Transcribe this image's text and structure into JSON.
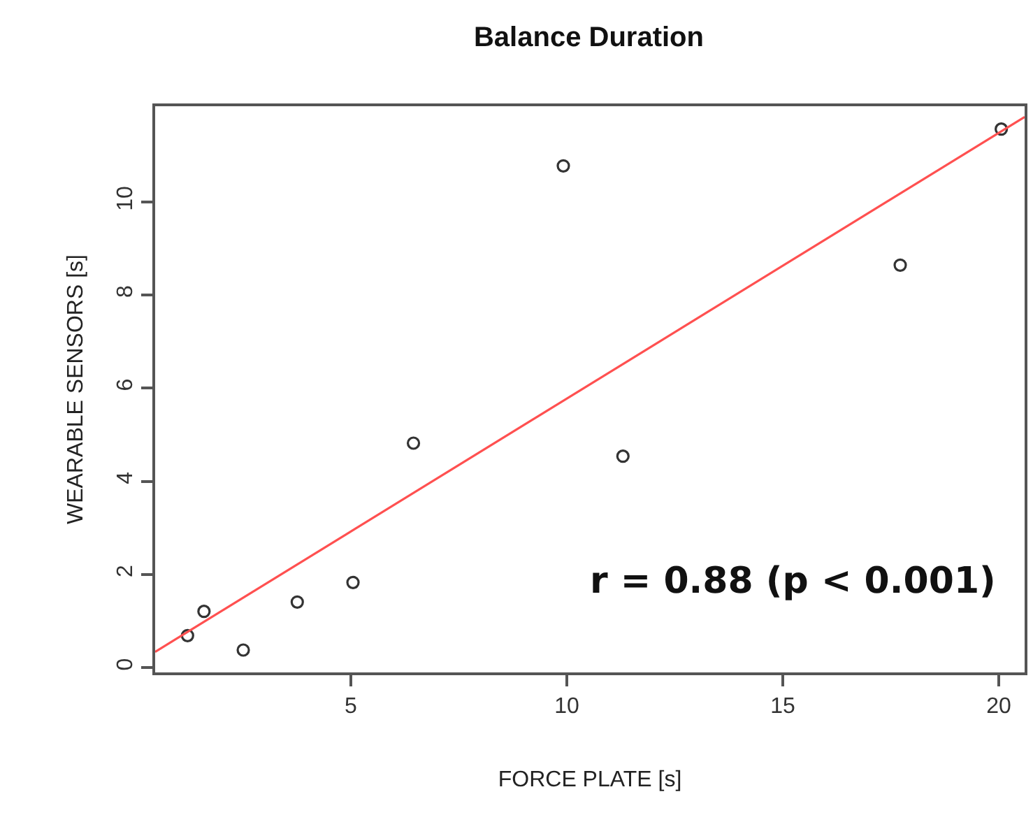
{
  "chart_data": {
    "type": "scatter",
    "title": "Balance Duration",
    "xlabel": "FORCE PLATE [s]",
    "ylabel": "WEARABLE SENSORS [s]",
    "x": [
      1.22,
      1.6,
      2.51,
      3.76,
      5.05,
      6.45,
      9.92,
      11.3,
      17.72,
      20.06
    ],
    "series": [
      {
        "color": "#333333",
        "values": [
          0.69,
          1.21,
          0.38,
          1.41,
          1.83,
          4.82,
          10.77,
          4.54,
          8.64,
          11.56
        ],
        "marker": "circle"
      },
      {
        "type": "line",
        "color": "#ff5050",
        "x": [
          0.47,
          20.6
        ],
        "values": [
          0.34,
          11.82
        ],
        "marker": "none"
      }
    ],
    "xlim": [
      0.47,
      20.6
    ],
    "ylim": [
      -0.1,
      12.05
    ],
    "xticks": [
      5,
      10,
      15,
      20
    ],
    "yticks": [
      0,
      2,
      4,
      6,
      8,
      10
    ],
    "annotations": [
      "r = 0.88 (p < 0.001)"
    ],
    "legend": false
  }
}
